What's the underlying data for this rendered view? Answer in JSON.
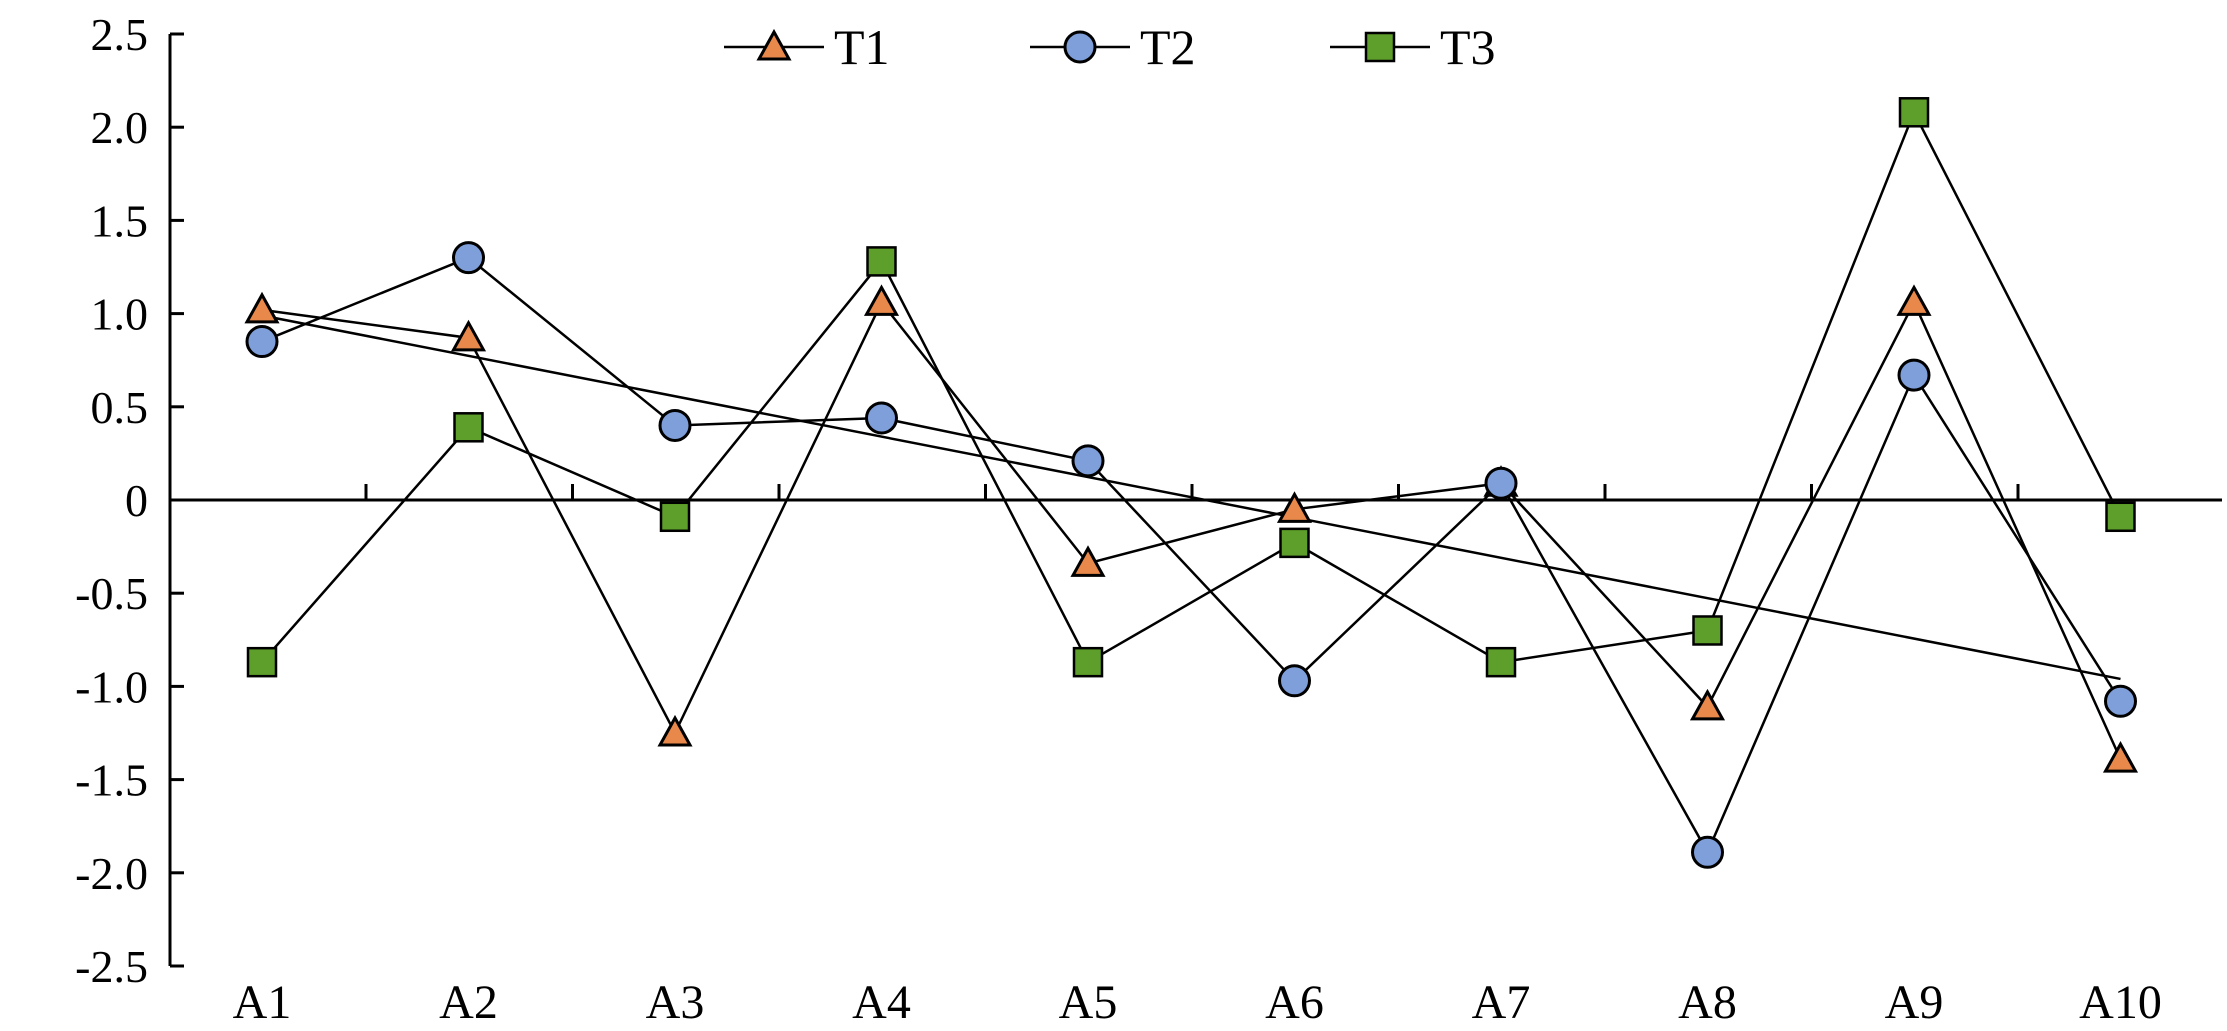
{
  "chart_data": {
    "type": "line",
    "categories": [
      "A1",
      "A2",
      "A3",
      "A4",
      "A5",
      "A6",
      "A7",
      "A8",
      "A9",
      "A10"
    ],
    "y_ticks": [
      "2.5",
      "2.0",
      "1.5",
      "1.0",
      "0.5",
      "0",
      "-0.5",
      "-1.0",
      "-1.5",
      "-2.0",
      "-2.5"
    ],
    "ylim": [
      -2.5,
      2.5
    ],
    "grid": false,
    "legend_position": "top-center",
    "series": [
      {
        "name": "T1",
        "marker": "triangle",
        "color": "#E8884A",
        "values": [
          1.02,
          0.87,
          -1.25,
          1.06,
          -0.34,
          -0.05,
          0.09,
          -1.11,
          1.06,
          -1.39
        ]
      },
      {
        "name": "T2",
        "marker": "circle",
        "color": "#7F9FDB",
        "values": [
          0.85,
          1.3,
          0.4,
          0.44,
          0.21,
          -0.97,
          0.09,
          -1.89,
          0.67,
          -1.08
        ]
      },
      {
        "name": "T3",
        "marker": "square",
        "color": "#5E9E2A",
        "values": [
          -0.87,
          0.39,
          -0.09,
          1.28,
          -0.87,
          -0.23,
          -0.87,
          -0.7,
          2.08,
          -0.09
        ]
      }
    ],
    "trendline": {
      "color": "#000000",
      "values": [
        0.99,
        -0.96
      ]
    }
  }
}
